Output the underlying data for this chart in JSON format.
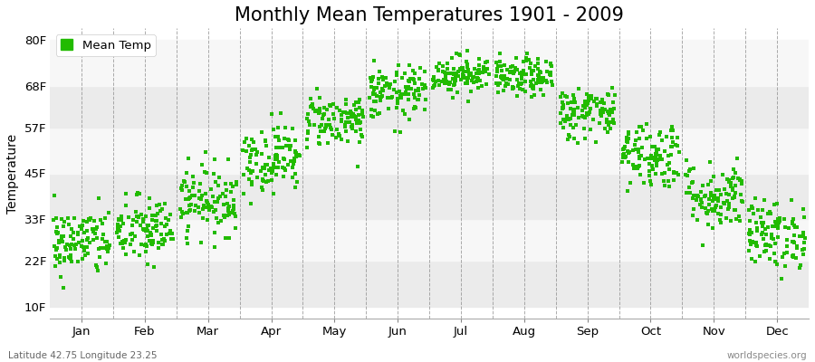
{
  "title": "Monthly Mean Temperatures 1901 - 2009",
  "ylabel": "Temperature",
  "subtitle_left": "Latitude 42.75 Longitude 23.25",
  "subtitle_right": "worldspecies.org",
  "dot_color": "#22bb00",
  "background_color": "#ffffff",
  "plot_bg_colors": [
    "#ebebeb",
    "#f7f7f7"
  ],
  "legend_label": "Mean Temp",
  "ytick_labels": [
    "10F",
    "22F",
    "33F",
    "45F",
    "57F",
    "68F",
    "80F"
  ],
  "ytick_values": [
    10,
    22,
    33,
    45,
    57,
    68,
    80
  ],
  "ylim": [
    7,
    83
  ],
  "months": [
    "Jan",
    "Feb",
    "Mar",
    "Apr",
    "May",
    "Jun",
    "Jul",
    "Aug",
    "Sep",
    "Oct",
    "Nov",
    "Dec"
  ],
  "month_means_F": [
    27,
    30,
    38,
    49,
    59,
    66,
    71,
    70,
    61,
    50,
    39,
    29
  ],
  "month_stds_F": [
    4.5,
    4.5,
    4.5,
    4.5,
    3.5,
    3.5,
    2.5,
    2.5,
    3.5,
    4.5,
    4.5,
    4.5
  ],
  "n_years": 109,
  "grid_color": "#888888",
  "title_fontsize": 15,
  "label_fontsize": 10,
  "tick_fontsize": 9.5
}
